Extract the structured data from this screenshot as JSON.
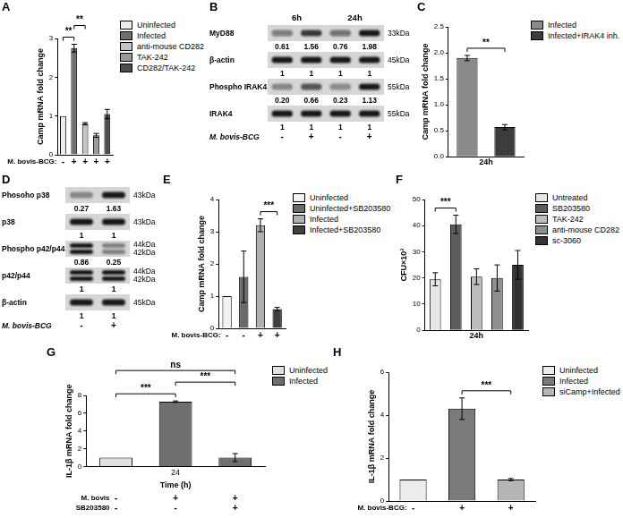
{
  "chart_data": [
    {
      "panel": "A",
      "type": "bar",
      "categories": [
        "Uninfected",
        "Infected",
        "anti-mouse CD282",
        "TAK-242",
        "CD282/TAK-242"
      ],
      "values": [
        1,
        2.75,
        0.8,
        0.5,
        1.05
      ],
      "errors": [
        null,
        0.1,
        0.03,
        0.05,
        0.12
      ],
      "colors": [
        "#ececec",
        "#6f6f6f",
        "#c4c4c4",
        "#9a9a9a",
        "#4d4d4d"
      ],
      "ylabel": "Camp mRNA fold change",
      "ylim": [
        0,
        3
      ],
      "yticks": [
        0,
        1,
        2,
        3
      ],
      "grid": false,
      "legend": "right",
      "tick_labels": "y",
      "annotations": [
        {
          "text": "**",
          "bars": [
            0,
            1
          ]
        },
        {
          "text": "**",
          "bars": [
            1,
            2
          ]
        }
      ],
      "conditions": [
        {
          "label": "M. bovis-BCG:",
          "marks": [
            "-",
            "+",
            "+",
            "+",
            "+"
          ]
        }
      ]
    },
    {
      "panel": "C",
      "type": "bar",
      "categories": [
        "Infected",
        "Infected+IRAK4 inh."
      ],
      "values": [
        1.9,
        0.57
      ],
      "errors": [
        0.05,
        0.05
      ],
      "colors": [
        "#8a8a8a",
        "#3c3c3c"
      ],
      "ylabel": "Camp mRNA fold change",
      "xlabel": "24h",
      "ylim": [
        0,
        2.5
      ],
      "yticks": [
        {
          "value": 0,
          "label": "0.0"
        },
        {
          "value": 0.5,
          "label": "0.5"
        },
        {
          "value": 1,
          "label": "1.0"
        },
        {
          "value": 1.5,
          "label": "1.5"
        },
        {
          "value": 2,
          "label": "2.0"
        },
        {
          "value": 2.5,
          "label": "2.5"
        }
      ],
      "grid": false,
      "legend": "right",
      "tick_labels": "y",
      "annotations": [
        {
          "text": "**",
          "bars": [
            0,
            1
          ]
        }
      ]
    },
    {
      "panel": "E",
      "type": "bar",
      "categories": [
        "Uninfected",
        "Uninfected+SB203580",
        "Infected",
        "Infected+SB203580"
      ],
      "values": [
        1,
        1.6,
        3.2,
        0.6
      ],
      "errors": [
        null,
        0.8,
        0.2,
        0.05
      ],
      "colors": [
        "#f2f2f2",
        "#6a6a6a",
        "#b0b0b0",
        "#3f3f3f"
      ],
      "ylabel": "Camp mRNA fold change",
      "ylim": [
        0,
        4
      ],
      "yticks": [
        0,
        1,
        2,
        3,
        4
      ],
      "grid": false,
      "legend": "right",
      "tick_labels": "y",
      "annotations": [
        {
          "text": "***",
          "bars": [
            2,
            3
          ]
        }
      ],
      "conditions": [
        {
          "label": "M. bovis-BCG:",
          "marks": [
            "-",
            "-",
            "+",
            "+"
          ]
        }
      ]
    },
    {
      "panel": "F",
      "type": "bar",
      "categories": [
        "Untreated",
        "SB203580",
        "TAK-242",
        "anti-mouse CD282",
        "sc-3060"
      ],
      "values": [
        19.5,
        40.5,
        20.5,
        20,
        25
      ],
      "errors": [
        2.5,
        3.5,
        3,
        5,
        5.5
      ],
      "colors": [
        "#e6e6e6",
        "#5c5c5c",
        "#bdbdbd",
        "#8f8f8f",
        "#333333"
      ],
      "ylabel": "CFU×10³",
      "xlabel": "24h",
      "ylim": [
        0,
        50
      ],
      "yticks": [
        0,
        10,
        20,
        30,
        40,
        50
      ],
      "grid": false,
      "legend": "right",
      "tick_labels": "y",
      "annotations": [
        {
          "text": "***",
          "bars": [
            0,
            1
          ]
        }
      ]
    },
    {
      "panel": "G",
      "type": "bar",
      "categories": [
        null,
        "24",
        null
      ],
      "series": [
        {
          "name": "Uninfected",
          "color": "#e0e0e0",
          "values": [
            1,
            null,
            null
          ],
          "errors": [
            null,
            null,
            null
          ]
        },
        {
          "name": "Infected",
          "color": "#6f6f6f",
          "values": [
            null,
            7.3,
            1.0
          ],
          "errors": [
            null,
            0.08,
            0.45
          ]
        }
      ],
      "ylabel": "IL-1β mRNA fold change",
      "xlabel": "Time (h)",
      "ylim": [
        0,
        8
      ],
      "yticks": [
        0,
        2,
        4,
        6,
        8
      ],
      "grid": false,
      "legend": "right",
      "annotations": [
        {
          "text": "***",
          "bars": [
            0,
            1
          ]
        },
        {
          "text": "***",
          "bars": [
            1,
            2
          ]
        },
        {
          "text": "ns",
          "bars": [
            0,
            2
          ]
        }
      ],
      "conditions": [
        {
          "label": "M. bovis",
          "marks": [
            "-",
            "+",
            "+"
          ]
        },
        {
          "label": "SB203580",
          "marks": [
            "-",
            "-",
            "+"
          ]
        }
      ]
    },
    {
      "panel": "H",
      "type": "bar",
      "categories": [
        "Uninfected",
        "Infected",
        "siCamp+Infected"
      ],
      "values": [
        1,
        4.3,
        1.0
      ],
      "errors": [
        null,
        0.5,
        0.05
      ],
      "colors": [
        "#ececec",
        "#7a7a7a",
        "#b5b5b5"
      ],
      "ylabel": "IL-1β mRNA fold change",
      "ylim": [
        0,
        6
      ],
      "yticks": [
        0,
        2,
        4,
        6
      ],
      "grid": false,
      "legend": "right",
      "tick_labels": "y",
      "annotations": [
        {
          "text": "***",
          "bars": [
            1,
            2
          ]
        }
      ],
      "conditions": [
        {
          "label": "M. bovis-BCG:",
          "marks": [
            "-",
            "+",
            "+"
          ]
        }
      ]
    }
  ],
  "blots": [
    {
      "panel": "B",
      "groups": [
        {
          "label": "6h",
          "lanes": 2
        },
        {
          "label": "24h",
          "lanes": 2
        }
      ],
      "rows": [
        {
          "label": "MyD88",
          "kda": [
            "33kDa"
          ],
          "values": [
            0.61,
            1.56,
            0.76,
            1.98
          ]
        },
        {
          "label": "β-actin",
          "kda": [
            "45kDa"
          ],
          "values": [
            1,
            1,
            1,
            1
          ]
        },
        {
          "label": "Phospho IRAK4",
          "kda": [
            "55kDa"
          ],
          "values": [
            0.2,
            0.66,
            0.23,
            1.13
          ],
          "value_labels": [
            "0.20",
            "0.66",
            "0.23",
            "1.13"
          ]
        },
        {
          "label": "IRAK4",
          "kda": [
            "55kDa"
          ],
          "values": [
            1,
            1,
            1,
            1
          ]
        }
      ],
      "conditions": [
        {
          "label": "M. bovis-BCG",
          "marks": [
            "-",
            "+",
            "-",
            "+"
          ]
        }
      ]
    },
    {
      "panel": "D",
      "rows": [
        {
          "label": "Phosoho p38",
          "kda": [
            "43kDa"
          ],
          "values": [
            0.27,
            1.63
          ]
        },
        {
          "label": "p38",
          "kda": [
            "43kDa"
          ],
          "values": [
            1,
            1
          ]
        },
        {
          "label": "Phospho p42/p44",
          "kda": [
            "44kDa",
            "42kDa"
          ],
          "values": [
            0.86,
            0.25
          ]
        },
        {
          "label": "p42/p44",
          "kda": [
            "44kDa",
            "42kDa"
          ],
          "values": [
            1,
            1
          ]
        },
        {
          "label": "β-actin",
          "kda": [
            "45kDa"
          ],
          "values": [
            1,
            1
          ]
        }
      ],
      "conditions": [
        {
          "label": "M. bovis-BCG",
          "marks": [
            "-",
            "+"
          ]
        }
      ]
    }
  ]
}
